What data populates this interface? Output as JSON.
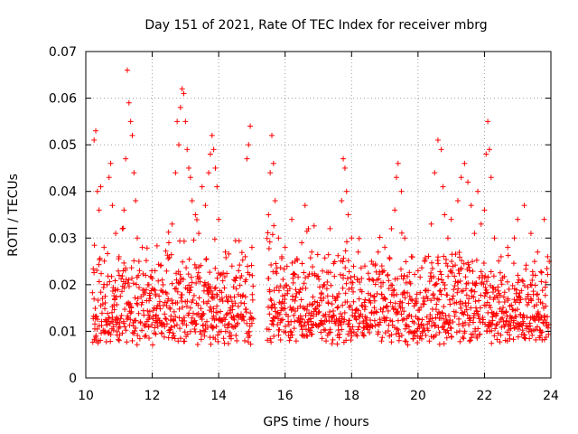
{
  "chart_data": {
    "type": "scatter",
    "title": "Day 151 of 2021, Rate Of TEC Index for receiver mbrg",
    "xlabel": "GPS time / hours",
    "ylabel": "ROTI / TECUs",
    "xlim": [
      10,
      24
    ],
    "ylim": [
      0,
      0.07
    ],
    "x_ticks": [
      10,
      12,
      14,
      16,
      18,
      20,
      22,
      24
    ],
    "x_tick_labels": [
      "10",
      "12",
      "14",
      "16",
      "18",
      "20",
      "22",
      "24"
    ],
    "y_ticks": [
      0,
      0.01,
      0.02,
      0.03,
      0.04,
      0.05,
      0.06,
      0.07
    ],
    "y_tick_labels": [
      "0",
      "0.01",
      "0.02",
      "0.03",
      "0.04",
      "0.05",
      "0.06",
      "0.07"
    ],
    "grid": true,
    "marker": "+",
    "color": "#ff0000",
    "data_gap": [
      15.05,
      15.45
    ],
    "baseline_band": [
      0.004,
      0.02
    ],
    "points": [
      [
        10.25,
        0.051
      ],
      [
        10.3,
        0.053
      ],
      [
        10.35,
        0.04
      ],
      [
        10.4,
        0.036
      ],
      [
        10.45,
        0.041
      ],
      [
        10.55,
        0.028
      ],
      [
        10.7,
        0.043
      ],
      [
        10.75,
        0.046
      ],
      [
        10.8,
        0.037
      ],
      [
        10.9,
        0.031
      ],
      [
        11.0,
        0.026
      ],
      [
        11.1,
        0.032
      ],
      [
        11.15,
        0.036
      ],
      [
        11.2,
        0.047
      ],
      [
        11.25,
        0.066
      ],
      [
        11.3,
        0.059
      ],
      [
        11.35,
        0.055
      ],
      [
        11.4,
        0.052
      ],
      [
        11.45,
        0.044
      ],
      [
        11.5,
        0.038
      ],
      [
        11.55,
        0.03
      ],
      [
        11.6,
        0.025
      ],
      [
        11.7,
        0.028
      ],
      [
        11.8,
        0.022
      ],
      [
        11.9,
        0.02
      ],
      [
        12.1,
        0.018
      ],
      [
        12.3,
        0.021
      ],
      [
        12.5,
        0.029
      ],
      [
        12.6,
        0.033
      ],
      [
        12.7,
        0.044
      ],
      [
        12.75,
        0.055
      ],
      [
        12.8,
        0.05
      ],
      [
        12.85,
        0.058
      ],
      [
        12.9,
        0.062
      ],
      [
        12.95,
        0.061
      ],
      [
        13.0,
        0.055
      ],
      [
        13.05,
        0.049
      ],
      [
        13.1,
        0.045
      ],
      [
        13.15,
        0.043
      ],
      [
        13.2,
        0.038
      ],
      [
        13.3,
        0.035
      ],
      [
        13.4,
        0.031
      ],
      [
        13.5,
        0.041
      ],
      [
        13.6,
        0.037
      ],
      [
        13.7,
        0.044
      ],
      [
        13.75,
        0.048
      ],
      [
        13.8,
        0.052
      ],
      [
        13.85,
        0.049
      ],
      [
        13.9,
        0.045
      ],
      [
        13.95,
        0.041
      ],
      [
        14.0,
        0.034
      ],
      [
        14.2,
        0.027
      ],
      [
        14.4,
        0.024
      ],
      [
        14.6,
        0.023
      ],
      [
        14.8,
        0.026
      ],
      [
        14.85,
        0.047
      ],
      [
        14.9,
        0.05
      ],
      [
        14.95,
        0.054
      ],
      [
        15.0,
        0.028
      ],
      [
        15.5,
        0.035
      ],
      [
        15.55,
        0.044
      ],
      [
        15.6,
        0.052
      ],
      [
        15.65,
        0.046
      ],
      [
        15.7,
        0.038
      ],
      [
        15.8,
        0.03
      ],
      [
        15.9,
        0.026
      ],
      [
        16.0,
        0.028
      ],
      [
        16.2,
        0.034
      ],
      [
        16.3,
        0.025
      ],
      [
        16.5,
        0.029
      ],
      [
        16.6,
        0.037
      ],
      [
        16.7,
        0.032
      ],
      [
        16.8,
        0.027
      ],
      [
        16.9,
        0.022
      ],
      [
        17.1,
        0.018
      ],
      [
        17.3,
        0.016
      ],
      [
        17.5,
        0.017
      ],
      [
        17.7,
        0.038
      ],
      [
        17.75,
        0.047
      ],
      [
        17.8,
        0.045
      ],
      [
        17.85,
        0.04
      ],
      [
        17.9,
        0.035
      ],
      [
        18.0,
        0.03
      ],
      [
        18.2,
        0.027
      ],
      [
        18.4,
        0.024
      ],
      [
        18.6,
        0.025
      ],
      [
        18.8,
        0.027
      ],
      [
        19.0,
        0.028
      ],
      [
        19.2,
        0.032
      ],
      [
        19.3,
        0.036
      ],
      [
        19.35,
        0.043
      ],
      [
        19.4,
        0.046
      ],
      [
        19.5,
        0.04
      ],
      [
        19.6,
        0.03
      ],
      [
        19.8,
        0.026
      ],
      [
        20.0,
        0.023
      ],
      [
        20.2,
        0.025
      ],
      [
        20.4,
        0.033
      ],
      [
        20.5,
        0.044
      ],
      [
        20.6,
        0.051
      ],
      [
        20.7,
        0.049
      ],
      [
        20.75,
        0.041
      ],
      [
        20.8,
        0.035
      ],
      [
        20.9,
        0.03
      ],
      [
        21.0,
        0.034
      ],
      [
        21.2,
        0.038
      ],
      [
        21.3,
        0.043
      ],
      [
        21.4,
        0.046
      ],
      [
        21.5,
        0.042
      ],
      [
        21.6,
        0.037
      ],
      [
        21.7,
        0.031
      ],
      [
        21.8,
        0.04
      ],
      [
        21.9,
        0.033
      ],
      [
        22.0,
        0.036
      ],
      [
        22.05,
        0.048
      ],
      [
        22.1,
        0.055
      ],
      [
        22.15,
        0.049
      ],
      [
        22.2,
        0.043
      ],
      [
        22.3,
        0.03
      ],
      [
        22.5,
        0.026
      ],
      [
        22.7,
        0.028
      ],
      [
        22.9,
        0.03
      ],
      [
        23.0,
        0.034
      ],
      [
        23.2,
        0.037
      ],
      [
        23.4,
        0.031
      ],
      [
        23.6,
        0.027
      ],
      [
        23.8,
        0.034
      ],
      [
        23.9,
        0.026
      ],
      [
        23.95,
        0.025
      ]
    ]
  }
}
